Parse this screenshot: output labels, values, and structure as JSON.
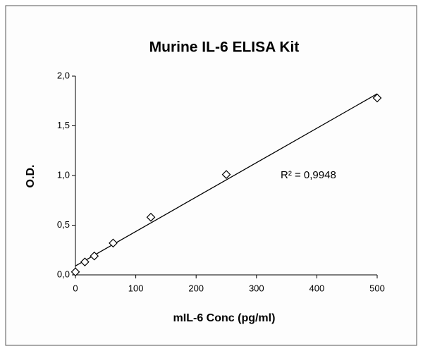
{
  "chart_data": {
    "type": "scatter",
    "title": "Murine IL-6 ELISA Kit",
    "x_label": "mIL-6 Conc (pg/ml)",
    "y_label": "O.D.",
    "annotation": "R² = 0,9948",
    "x": [
      0,
      15.6,
      31.25,
      62.5,
      125,
      250,
      500
    ],
    "values": [
      0.03,
      0.13,
      0.19,
      0.32,
      0.58,
      1.01,
      1.78
    ],
    "color": "#000000",
    "marker": "diamond",
    "trendline": "linear",
    "xlim": [
      0,
      500
    ],
    "xticks": [
      0,
      100,
      200,
      300,
      400,
      500
    ],
    "ylim": [
      0,
      2
    ],
    "yticks": [
      {
        "value": 0,
        "label": "0,0"
      },
      {
        "value": 0.5,
        "label": "0,5"
      },
      {
        "value": 1,
        "label": "1,0"
      },
      {
        "value": 1.5,
        "label": "1,5"
      },
      {
        "value": 2,
        "label": "2,0"
      }
    ],
    "grid": false
  }
}
